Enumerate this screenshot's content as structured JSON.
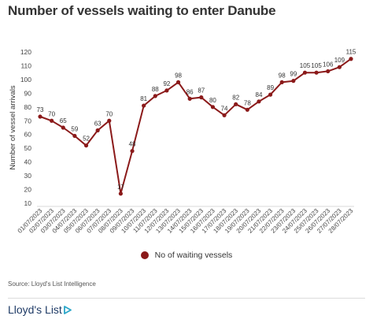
{
  "chart_data": {
    "type": "line",
    "title": "Number of vessels waiting to enter Danube",
    "xlabel": "",
    "ylabel": "Number of vessel arrivals",
    "ylim": [
      10,
      120
    ],
    "yticks": [
      10,
      20,
      30,
      40,
      50,
      60,
      70,
      80,
      90,
      100,
      110,
      120
    ],
    "grid": false,
    "legend_position": "bottom",
    "x": [
      "01/07/2023",
      "02/07/2023",
      "03/07/2023",
      "04/07/2023",
      "05/07/2023",
      "06/07/2023",
      "07/07/2023",
      "08/07/2023",
      "09/07/2023",
      "10/07/2023",
      "11/07/2023",
      "12/07/2023",
      "13/07/2023",
      "14/07/2023",
      "15/07/2023",
      "16/07/2023",
      "17/07/2023",
      "18/07/2023",
      "19/07/2023",
      "20/07/2023",
      "21/07/2023",
      "22/07/2023",
      "23/07/2023",
      "24/07/2023",
      "25/07/2023",
      "26/07/2023",
      "27/07/2023",
      "28/07/2023"
    ],
    "series": [
      {
        "name": "No of waiting vessels",
        "color": "#8b1a1a",
        "values": [
          73,
          70,
          65,
          59,
          52,
          63,
          70,
          17,
          48,
          81,
          88,
          92,
          98,
          86,
          87,
          80,
          74,
          82,
          78,
          84,
          89,
          98,
          99,
          105,
          105,
          106,
          109,
          115
        ]
      }
    ]
  },
  "source": "Source: Lloyd's List Intelligence",
  "brand": "Lloyd's List"
}
